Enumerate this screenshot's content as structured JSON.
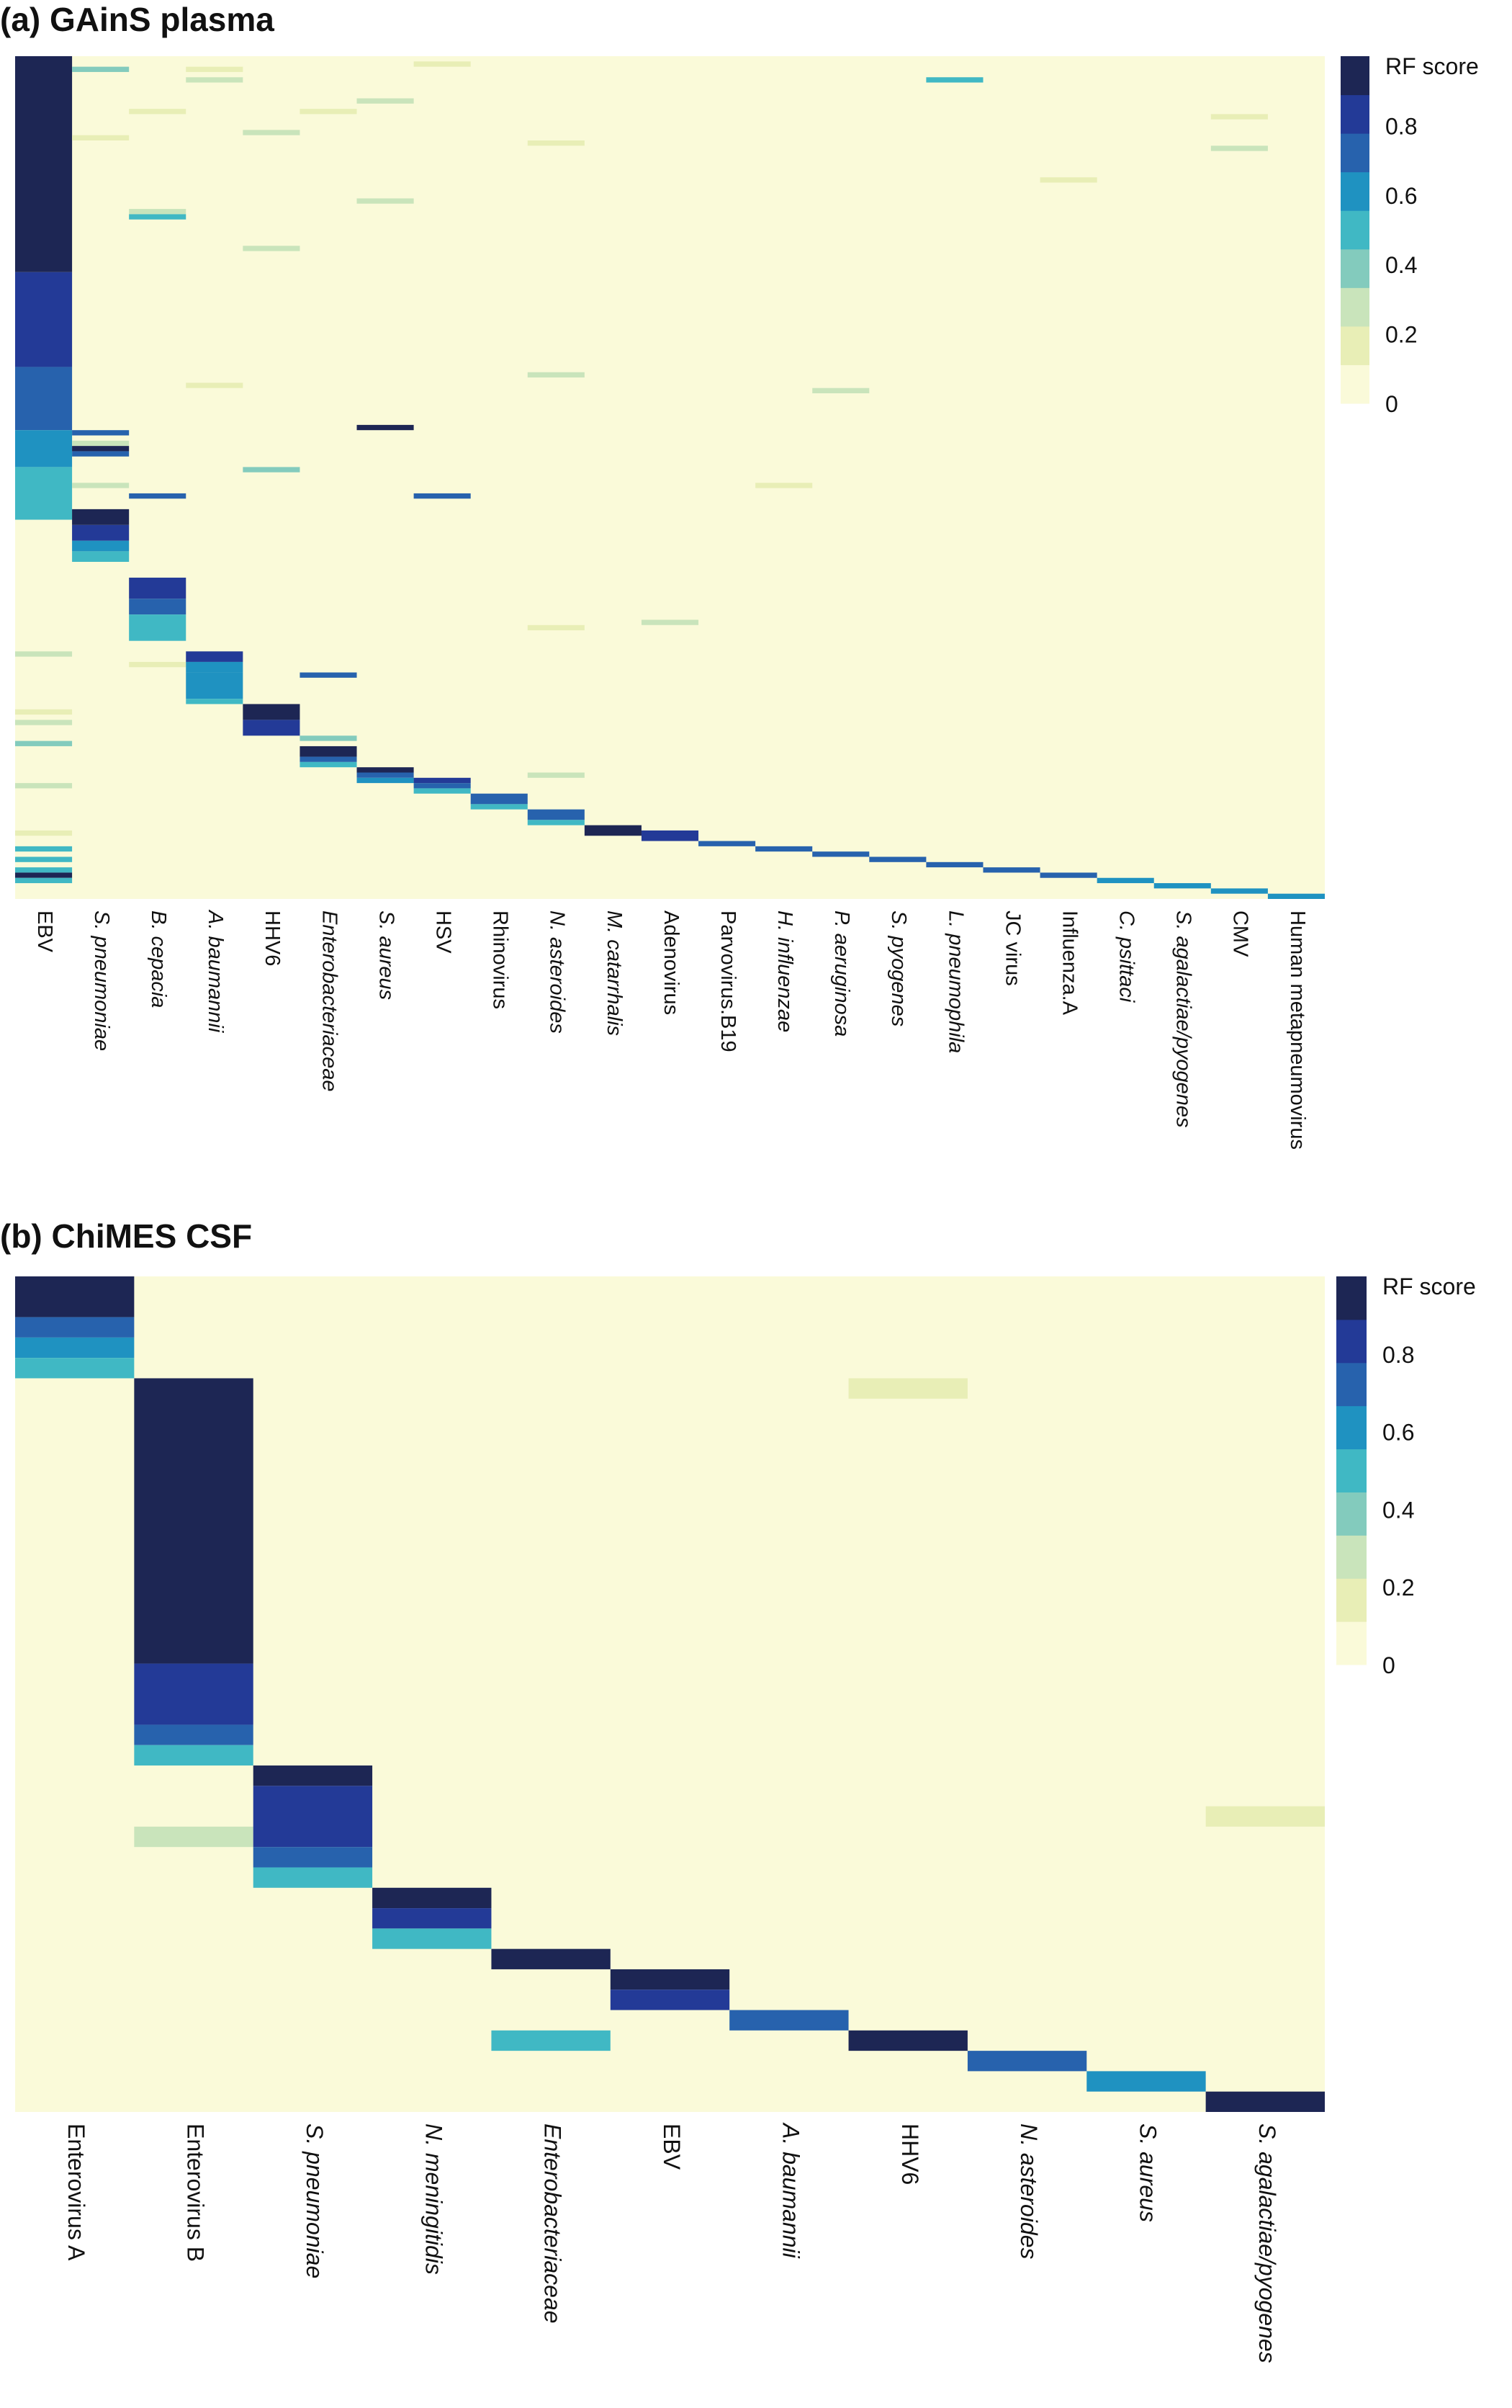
{
  "chart_data": [
    {
      "type": "heatmap",
      "title": "(a) GAinS plasma",
      "color_scale": {
        "title": "RF score",
        "ticks": [
          0,
          0.2,
          0.4,
          0.6,
          0.8
        ],
        "tick_labels": [
          "0",
          "0.2",
          "0.4",
          "0.6",
          "0.8"
        ],
        "colors": [
          "#fafad9",
          "#e8eeb6",
          "#c9e4bb",
          "#83cbbd",
          "#40b8c4",
          "#1f92c1",
          "#2762ad",
          "#233a97",
          "#1d2654"
        ]
      },
      "x_labels": [
        "EBV",
        "S. pneumoniae",
        "B. cepacia",
        "A. baumannii",
        "HHV6",
        "Enterobacteriaceae",
        "S. aureus",
        "HSV",
        "Rhinovirus",
        "N. asteroides",
        "M. catarrhalis",
        "Adenovirus",
        "Parvovirus.B19",
        "H. influenzae",
        "P. aeruginosa",
        "S. pyogenes",
        "L. pneumophila",
        "JC virus",
        "Influenza.A",
        "C. psittaci",
        "S. agalactiae/pyogenes",
        "CMV",
        "Human metapneumovirus"
      ],
      "italic_labels": [
        false,
        true,
        true,
        true,
        false,
        true,
        true,
        false,
        false,
        true,
        true,
        false,
        false,
        true,
        true,
        true,
        true,
        false,
        false,
        true,
        true,
        false,
        false
      ],
      "n_rows": 160,
      "cells": [
        [
          0,
          0,
          41,
          0.92
        ],
        [
          0,
          41,
          59,
          0.8
        ],
        [
          0,
          59,
          71,
          0.68
        ],
        [
          0,
          71,
          78,
          0.58
        ],
        [
          0,
          78,
          88,
          0.48
        ],
        [
          0,
          113,
          114,
          0.3
        ],
        [
          0,
          124,
          125,
          0.15
        ],
        [
          0,
          126,
          127,
          0.3
        ],
        [
          0,
          130,
          131,
          0.38
        ],
        [
          0,
          138,
          139,
          0.3
        ],
        [
          0,
          147,
          148,
          0.2
        ],
        [
          0,
          150,
          151,
          0.45
        ],
        [
          0,
          152,
          153,
          0.45
        ],
        [
          0,
          154,
          155,
          0.55
        ],
        [
          0,
          155,
          156,
          0.92
        ],
        [
          0,
          156,
          157,
          0.45
        ],
        [
          1,
          2,
          3,
          0.4
        ],
        [
          1,
          15,
          16,
          0.2
        ],
        [
          1,
          71,
          72,
          0.72
        ],
        [
          1,
          73,
          74,
          0.3
        ],
        [
          1,
          74,
          75,
          0.92
        ],
        [
          1,
          75,
          76,
          0.72
        ],
        [
          1,
          81,
          82,
          0.25
        ],
        [
          1,
          86,
          89,
          0.92
        ],
        [
          1,
          89,
          92,
          0.8
        ],
        [
          1,
          92,
          94,
          0.66
        ],
        [
          1,
          94,
          96,
          0.48
        ],
        [
          2,
          10,
          11,
          0.2
        ],
        [
          2,
          29,
          30,
          0.3
        ],
        [
          2,
          30,
          31,
          0.55
        ],
        [
          2,
          83,
          84,
          0.72
        ],
        [
          2,
          99,
          103,
          0.8
        ],
        [
          2,
          103,
          106,
          0.68
        ],
        [
          2,
          106,
          111,
          0.48
        ],
        [
          2,
          115,
          116,
          0.2
        ],
        [
          3,
          2,
          3,
          0.2
        ],
        [
          3,
          4,
          5,
          0.3
        ],
        [
          3,
          62,
          63,
          0.2
        ],
        [
          3,
          113,
          115,
          0.8
        ],
        [
          3,
          115,
          117,
          0.66
        ],
        [
          3,
          117,
          122,
          0.58
        ],
        [
          3,
          122,
          123,
          0.45
        ],
        [
          4,
          14,
          15,
          0.3
        ],
        [
          4,
          36,
          37,
          0.3
        ],
        [
          4,
          78,
          79,
          0.4
        ],
        [
          4,
          123,
          126,
          0.92
        ],
        [
          4,
          126,
          129,
          0.8
        ],
        [
          5,
          10,
          11,
          0.2
        ],
        [
          5,
          117,
          118,
          0.72
        ],
        [
          5,
          129,
          130,
          0.4
        ],
        [
          5,
          131,
          133,
          0.92
        ],
        [
          5,
          133,
          134,
          0.72
        ],
        [
          5,
          134,
          135,
          0.48
        ],
        [
          6,
          8,
          9,
          0.3
        ],
        [
          6,
          27,
          28,
          0.3
        ],
        [
          6,
          70,
          71,
          0.92
        ],
        [
          6,
          135,
          136,
          0.92
        ],
        [
          6,
          136,
          137,
          0.72
        ],
        [
          6,
          137,
          138,
          0.58
        ],
        [
          7,
          1,
          2,
          0.2
        ],
        [
          7,
          83,
          84,
          0.72
        ],
        [
          7,
          137,
          138,
          0.8
        ],
        [
          7,
          138,
          139,
          0.72
        ],
        [
          7,
          139,
          140,
          0.48
        ],
        [
          8,
          140,
          142,
          0.72
        ],
        [
          8,
          142,
          143,
          0.48
        ],
        [
          9,
          16,
          17,
          0.2
        ],
        [
          9,
          60,
          61,
          0.3
        ],
        [
          9,
          108,
          109,
          0.2
        ],
        [
          9,
          136,
          137,
          0.3
        ],
        [
          9,
          143,
          145,
          0.72
        ],
        [
          9,
          145,
          146,
          0.48
        ],
        [
          10,
          146,
          148,
          0.92
        ],
        [
          11,
          107,
          108,
          0.3
        ],
        [
          11,
          147,
          149,
          0.8
        ],
        [
          12,
          149,
          150,
          0.72
        ],
        [
          13,
          81,
          82,
          0.2
        ],
        [
          13,
          150,
          151,
          0.72
        ],
        [
          14,
          63,
          64,
          0.3
        ],
        [
          14,
          151,
          152,
          0.72
        ],
        [
          15,
          152,
          153,
          0.72
        ],
        [
          16,
          4,
          5,
          0.45
        ],
        [
          16,
          153,
          154,
          0.72
        ],
        [
          17,
          154,
          155,
          0.72
        ],
        [
          18,
          23,
          24,
          0.2
        ],
        [
          18,
          155,
          156,
          0.72
        ],
        [
          19,
          156,
          157,
          0.66
        ],
        [
          20,
          157,
          158,
          0.66
        ],
        [
          21,
          11,
          12,
          0.2
        ],
        [
          21,
          17,
          18,
          0.3
        ],
        [
          21,
          158,
          159,
          0.66
        ],
        [
          22,
          159,
          160,
          0.66
        ]
      ]
    },
    {
      "type": "heatmap",
      "title": "(b) ChiMES CSF",
      "color_scale": {
        "title": "RF score",
        "ticks": [
          0,
          0.2,
          0.4,
          0.6,
          0.8
        ],
        "tick_labels": [
          "0",
          "0.2",
          "0.4",
          "0.6",
          "0.8"
        ],
        "colors": [
          "#fafad9",
          "#e8eeb6",
          "#c9e4bb",
          "#83cbbd",
          "#40b8c4",
          "#1f92c1",
          "#2762ad",
          "#233a97",
          "#1d2654"
        ]
      },
      "x_labels": [
        "Enterovirus A",
        "Enterovirus B",
        "S. pneumoniae",
        "N. meningitidis",
        "Enterobacteriaceae",
        "EBV",
        "A. baumannii",
        "HHV6",
        "N. asteroides",
        "S. aureus",
        "S. agalactiae/pyogenes"
      ],
      "italic_labels": [
        false,
        false,
        true,
        true,
        true,
        false,
        true,
        false,
        true,
        true,
        true
      ],
      "n_rows": 41,
      "cells": [
        [
          0,
          0,
          2,
          0.92
        ],
        [
          0,
          2,
          3,
          0.72
        ],
        [
          0,
          3,
          4,
          0.6
        ],
        [
          0,
          4,
          5,
          0.48
        ],
        [
          1,
          5,
          19,
          0.92
        ],
        [
          1,
          19,
          22,
          0.8
        ],
        [
          1,
          22,
          23,
          0.68
        ],
        [
          1,
          23,
          24,
          0.48
        ],
        [
          1,
          27,
          28,
          0.3
        ],
        [
          2,
          24,
          25,
          0.92
        ],
        [
          2,
          25,
          28,
          0.8
        ],
        [
          2,
          28,
          29,
          0.68
        ],
        [
          2,
          29,
          30,
          0.48
        ],
        [
          3,
          30,
          31,
          0.92
        ],
        [
          3,
          31,
          32,
          0.8
        ],
        [
          3,
          32,
          33,
          0.48
        ],
        [
          4,
          33,
          34,
          0.92
        ],
        [
          4,
          37,
          38,
          0.48
        ],
        [
          5,
          34,
          35,
          0.92
        ],
        [
          5,
          35,
          36,
          0.8
        ],
        [
          6,
          36,
          37,
          0.72
        ],
        [
          7,
          5,
          6,
          0.2
        ],
        [
          7,
          37,
          38,
          0.92
        ],
        [
          8,
          38,
          39,
          0.72
        ],
        [
          9,
          39,
          40,
          0.62
        ],
        [
          10,
          26,
          27,
          0.2
        ],
        [
          10,
          40,
          41,
          0.92
        ]
      ]
    }
  ]
}
